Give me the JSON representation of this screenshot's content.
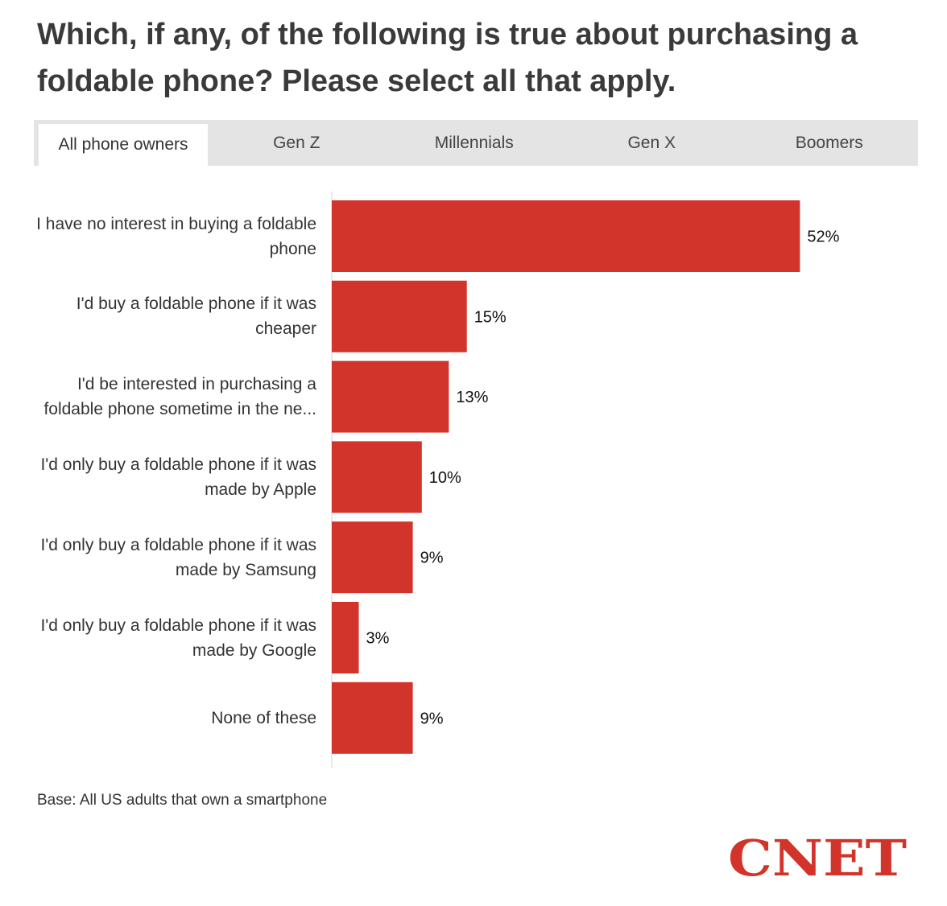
{
  "title": "Which, if any, of the following is true about purchasing a foldable phone? Please select all that apply.",
  "tabs": [
    {
      "label": "All phone owners",
      "active": true
    },
    {
      "label": "Gen Z",
      "active": false
    },
    {
      "label": "Millennials",
      "active": false
    },
    {
      "label": "Gen X",
      "active": false
    },
    {
      "label": "Boomers",
      "active": false
    }
  ],
  "chart_data": {
    "type": "bar",
    "orientation": "horizontal",
    "categories": [
      "I have no interest in buying a foldable phone",
      "I'd buy a foldable phone if it was cheaper",
      "I'd be interested in purchasing a foldable phone sometime in the ne...",
      "I'd only buy a foldable phone if it was made by Apple",
      "I'd only buy a foldable phone if it was made by Samsung",
      "I'd only buy a foldable phone if it was made by Google",
      "None of these"
    ],
    "values": [
      52,
      15,
      13,
      10,
      9,
      3,
      9
    ],
    "value_labels": [
      "52%",
      "15%",
      "13%",
      "10%",
      "9%",
      "3%",
      "9%"
    ],
    "unit": "%",
    "bar_color": "#d2342b",
    "xlim": [
      0,
      60
    ],
    "grid": false
  },
  "footer": {
    "base_note": "Base: All US adults that own a smartphone",
    "logo_text": "CNET",
    "logo_color": "#d2342b"
  }
}
